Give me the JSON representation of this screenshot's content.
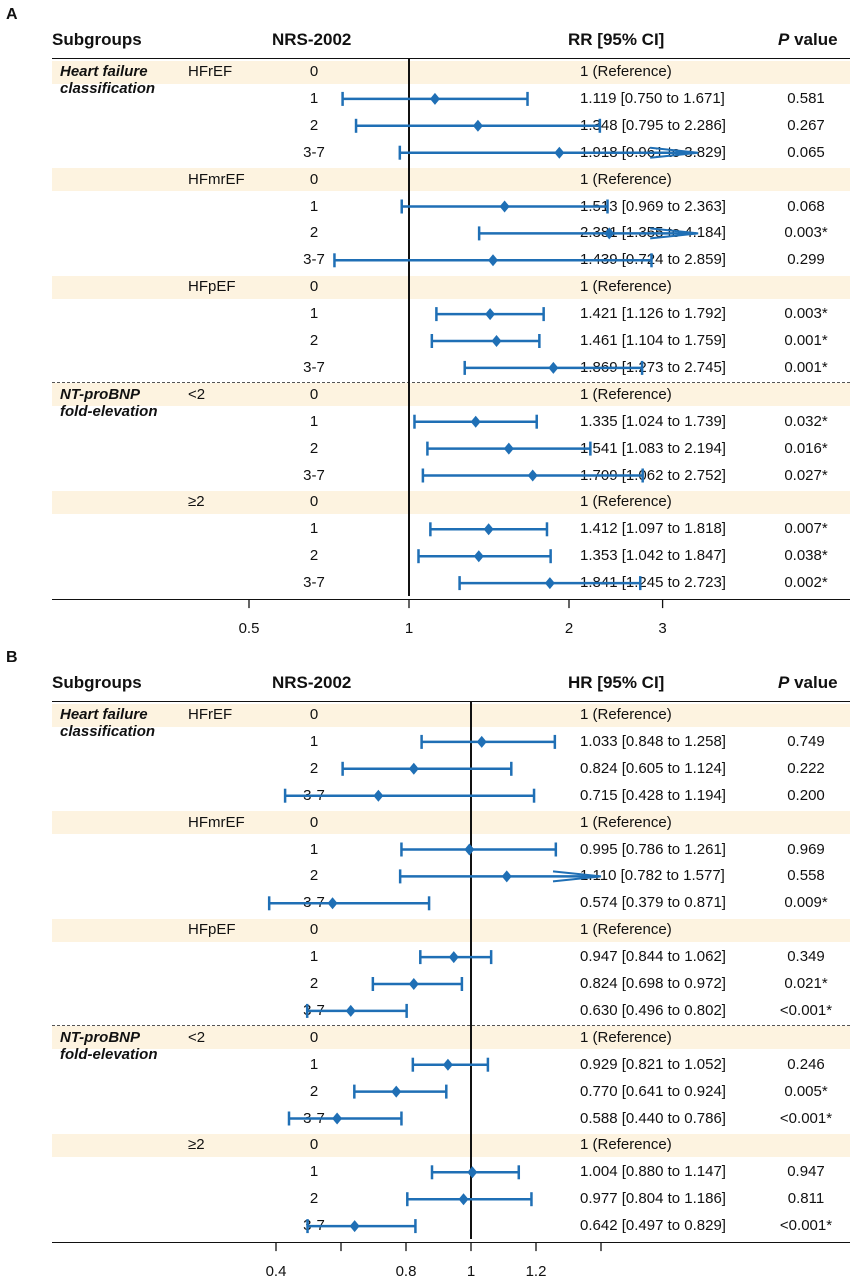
{
  "panels": [
    {
      "label": "A",
      "header": {
        "subgroups": "Subgroups",
        "nrs": "NRS-2002",
        "ci": "RR [95% CI]",
        "p_italic": "P",
        "p_rest": " value"
      },
      "rows": [
        {
          "group": "Heart failure",
          "group2": "classification",
          "sub": "HFrEF",
          "nrs": "0",
          "text": "1 (Reference)",
          "p": ""
        },
        {
          "nrs": "1",
          "text": "1.119 [0.750 to 1.671]",
          "p": "0.581"
        },
        {
          "nrs": "2",
          "text": "1.348 [0.795 to 2.286]",
          "p": "0.267"
        },
        {
          "nrs": "3-7",
          "text": "1.918 [0.961 to 3.829]",
          "p": "0.065"
        },
        {
          "sub": "HFmrEF",
          "nrs": "0",
          "text": "1 (Reference)",
          "p": ""
        },
        {
          "nrs": "1",
          "text": "1.513  [0.969 to 2.363]",
          "p": "0.068"
        },
        {
          "nrs": "2",
          "text": "2.381 [1.355 to 4.184]",
          "p": "0.003*"
        },
        {
          "nrs": "3-7",
          "text": "1.439 [0.724 to 2.859]",
          "p": "0.299"
        },
        {
          "sub": "HFpEF",
          "nrs": "0",
          "text": "1 (Reference)",
          "p": ""
        },
        {
          "nrs": "1",
          "text": "1.421 [1.126 to 1.792]",
          "p": "0.003*"
        },
        {
          "nrs": "2",
          "text": "1.461 [1.104 to 1.759]",
          "p": "0.001*"
        },
        {
          "nrs": "3-7",
          "text": "1.869 [1.273 to 2.745]",
          "p": "0.001*"
        },
        {
          "group": "NT-proBNP",
          "group2": "fold-elevation",
          "sub": "<2",
          "nrs": "0",
          "text": "1 (Reference)",
          "p": ""
        },
        {
          "nrs": "1",
          "text": "1.335 [1.024 to 1.739]",
          "p": "0.032*"
        },
        {
          "nrs": "2",
          "text": "1.541 [1.083 to 2.194]",
          "p": "0.016*"
        },
        {
          "nrs": "3-7",
          "text": "1.709 [1.062 to 2.752]",
          "p": "0.027*"
        },
        {
          "sub": "≥2",
          "nrs": "0",
          "text": "1 (Reference)",
          "p": ""
        },
        {
          "nrs": "1",
          "text": "1.412 [1.097 to 1.818]",
          "p": "0.007*"
        },
        {
          "nrs": "2",
          "text": "1.353 [1.042 to 1.847]",
          "p": "0.038*"
        },
        {
          "nrs": "3-7",
          "text": "1.841 [1.245 to 2.723]",
          "p": "0.002*"
        }
      ],
      "axis": {
        "ticks": [
          0.5,
          1,
          2,
          3
        ],
        "tick_labels": [
          "0.5",
          "1",
          "2",
          "3"
        ]
      }
    },
    {
      "label": "B",
      "header": {
        "subgroups": "Subgroups",
        "nrs": "NRS-2002",
        "ci": "HR [95% CI]",
        "p_italic": "P",
        "p_rest": " value"
      },
      "rows": [
        {
          "group": "Heart failure",
          "group2": "classification",
          "sub": "HFrEF",
          "nrs": "0",
          "text": "1 (Reference)",
          "p": ""
        },
        {
          "nrs": "1",
          "text": "1.033 [0.848 to 1.258]",
          "p": "0.749"
        },
        {
          "nrs": "2",
          "text": "0.824 [0.605 to 1.124]",
          "p": "0.222"
        },
        {
          "nrs": "3-7",
          "text": "0.715 [0.428 to 1.194]",
          "p": "0.200"
        },
        {
          "sub": "HFmrEF",
          "nrs": "0",
          "text": "1 (Reference)",
          "p": ""
        },
        {
          "nrs": "1",
          "text": "0.995 [0.786 to 1.261]",
          "p": "0.969"
        },
        {
          "nrs": "2",
          "text": "1.110 [0.782 to 1.577]",
          "p": "0.558"
        },
        {
          "nrs": "3-7",
          "text": "0.574 [0.379 to 0.871]",
          "p": "0.009*"
        },
        {
          "sub": "HFpEF",
          "nrs": "0",
          "text": "1 (Reference)",
          "p": ""
        },
        {
          "nrs": "1",
          "text": "0.947 [0.844 to 1.062]",
          "p": "0.349"
        },
        {
          "nrs": "2",
          "text": "0.824 [0.698 to 0.972]",
          "p": "0.021*"
        },
        {
          "nrs": "3-7",
          "text": "0.630 [0.496 to 0.802]",
          "p": "<0.001*"
        },
        {
          "group": "NT-proBNP",
          "group2": "fold-elevation",
          "sub": "<2",
          "nrs": "0",
          "text": "1 (Reference)",
          "p": ""
        },
        {
          "nrs": "1",
          "text": "0.929 [0.821 to 1.052]",
          "p": "0.246"
        },
        {
          "nrs": "2",
          "text": "0.770 [0.641 to 0.924]",
          "p": "0.005*"
        },
        {
          "nrs": "3-7",
          "text": "0.588 [0.440 to 0.786]",
          "p": "<0.001*"
        },
        {
          "sub": "≥2",
          "nrs": "0",
          "text": "1 (Reference)",
          "p": ""
        },
        {
          "nrs": "1",
          "text": "1.004 [0.880 to 1.147]",
          "p": "0.947"
        },
        {
          "nrs": "2",
          "text": "0.977 [0.804 to 1.186]",
          "p": "0.811"
        },
        {
          "nrs": "3-7",
          "text": "0.642 [0.497 to 0.829]",
          "p": "<0.001*"
        }
      ],
      "axis": {
        "ticks": [
          0.4,
          0.6,
          0.8,
          1,
          1.2,
          1.4
        ],
        "tick_labels": [
          "0.4",
          "",
          "0.8",
          "1",
          "1.2",
          ""
        ]
      }
    }
  ],
  "chart_data": [
    {
      "type": "forest",
      "title": "A",
      "measure": "RR [95% CI]",
      "reference_line": 1,
      "arrow_beyond": 3.5,
      "points": [
        {
          "subgroup": "HFrEF",
          "nrs": "1",
          "est": 1.119,
          "lo": 0.75,
          "hi": 1.671
        },
        {
          "subgroup": "HFrEF",
          "nrs": "2",
          "est": 1.348,
          "lo": 0.795,
          "hi": 2.286
        },
        {
          "subgroup": "HFrEF",
          "nrs": "3-7",
          "est": 1.918,
          "lo": 0.961,
          "hi": 3.829
        },
        {
          "subgroup": "HFmrEF",
          "nrs": "1",
          "est": 1.513,
          "lo": 0.969,
          "hi": 2.363
        },
        {
          "subgroup": "HFmrEF",
          "nrs": "2",
          "est": 2.381,
          "lo": 1.355,
          "hi": 4.184
        },
        {
          "subgroup": "HFmrEF",
          "nrs": "3-7",
          "est": 1.439,
          "lo": 0.724,
          "hi": 2.859
        },
        {
          "subgroup": "HFpEF",
          "nrs": "1",
          "est": 1.421,
          "lo": 1.126,
          "hi": 1.792
        },
        {
          "subgroup": "HFpEF",
          "nrs": "2",
          "est": 1.461,
          "lo": 1.104,
          "hi": 1.759
        },
        {
          "subgroup": "HFpEF",
          "nrs": "3-7",
          "est": 1.869,
          "lo": 1.273,
          "hi": 2.745
        },
        {
          "subgroup": "<2",
          "nrs": "1",
          "est": 1.335,
          "lo": 1.024,
          "hi": 1.739
        },
        {
          "subgroup": "<2",
          "nrs": "2",
          "est": 1.541,
          "lo": 1.083,
          "hi": 2.194
        },
        {
          "subgroup": "<2",
          "nrs": "3-7",
          "est": 1.709,
          "lo": 1.062,
          "hi": 2.752
        },
        {
          "subgroup": "≥2",
          "nrs": "1",
          "est": 1.412,
          "lo": 1.097,
          "hi": 1.818
        },
        {
          "subgroup": "≥2",
          "nrs": "2",
          "est": 1.353,
          "lo": 1.042,
          "hi": 1.847
        },
        {
          "subgroup": "≥2",
          "nrs": "3-7",
          "est": 1.841,
          "lo": 1.245,
          "hi": 2.723
        }
      ]
    },
    {
      "type": "forest",
      "title": "B",
      "measure": "HR [95% CI]",
      "reference_line": 1,
      "arrow_beyond": 1.4,
      "points": [
        {
          "subgroup": "HFrEF",
          "nrs": "1",
          "est": 1.033,
          "lo": 0.848,
          "hi": 1.258
        },
        {
          "subgroup": "HFrEF",
          "nrs": "2",
          "est": 0.824,
          "lo": 0.605,
          "hi": 1.124
        },
        {
          "subgroup": "HFrEF",
          "nrs": "3-7",
          "est": 0.715,
          "lo": 0.428,
          "hi": 1.194
        },
        {
          "subgroup": "HFmrEF",
          "nrs": "1",
          "est": 0.995,
          "lo": 0.786,
          "hi": 1.261
        },
        {
          "subgroup": "HFmrEF",
          "nrs": "2",
          "est": 1.11,
          "lo": 0.782,
          "hi": 1.577
        },
        {
          "subgroup": "HFmrEF",
          "nrs": "3-7",
          "est": 0.574,
          "lo": 0.379,
          "hi": 0.871
        },
        {
          "subgroup": "HFpEF",
          "nrs": "1",
          "est": 0.947,
          "lo": 0.844,
          "hi": 1.062
        },
        {
          "subgroup": "HFpEF",
          "nrs": "2",
          "est": 0.824,
          "lo": 0.698,
          "hi": 0.972
        },
        {
          "subgroup": "HFpEF",
          "nrs": "3-7",
          "est": 0.63,
          "lo": 0.496,
          "hi": 0.802
        },
        {
          "subgroup": "<2",
          "nrs": "1",
          "est": 0.929,
          "lo": 0.821,
          "hi": 1.052
        },
        {
          "subgroup": "<2",
          "nrs": "2",
          "est": 0.77,
          "lo": 0.641,
          "hi": 0.924
        },
        {
          "subgroup": "<2",
          "nrs": "3-7",
          "est": 0.588,
          "lo": 0.44,
          "hi": 0.786
        },
        {
          "subgroup": "≥2",
          "nrs": "1",
          "est": 1.004,
          "lo": 0.88,
          "hi": 1.147
        },
        {
          "subgroup": "≥2",
          "nrs": "2",
          "est": 0.977,
          "lo": 0.804,
          "hi": 1.186
        },
        {
          "subgroup": "≥2",
          "nrs": "3-7",
          "est": 0.642,
          "lo": 0.497,
          "hi": 0.829
        }
      ]
    }
  ],
  "colors": {
    "marker": "#1f6fb5",
    "band": "#fdf3e0"
  }
}
